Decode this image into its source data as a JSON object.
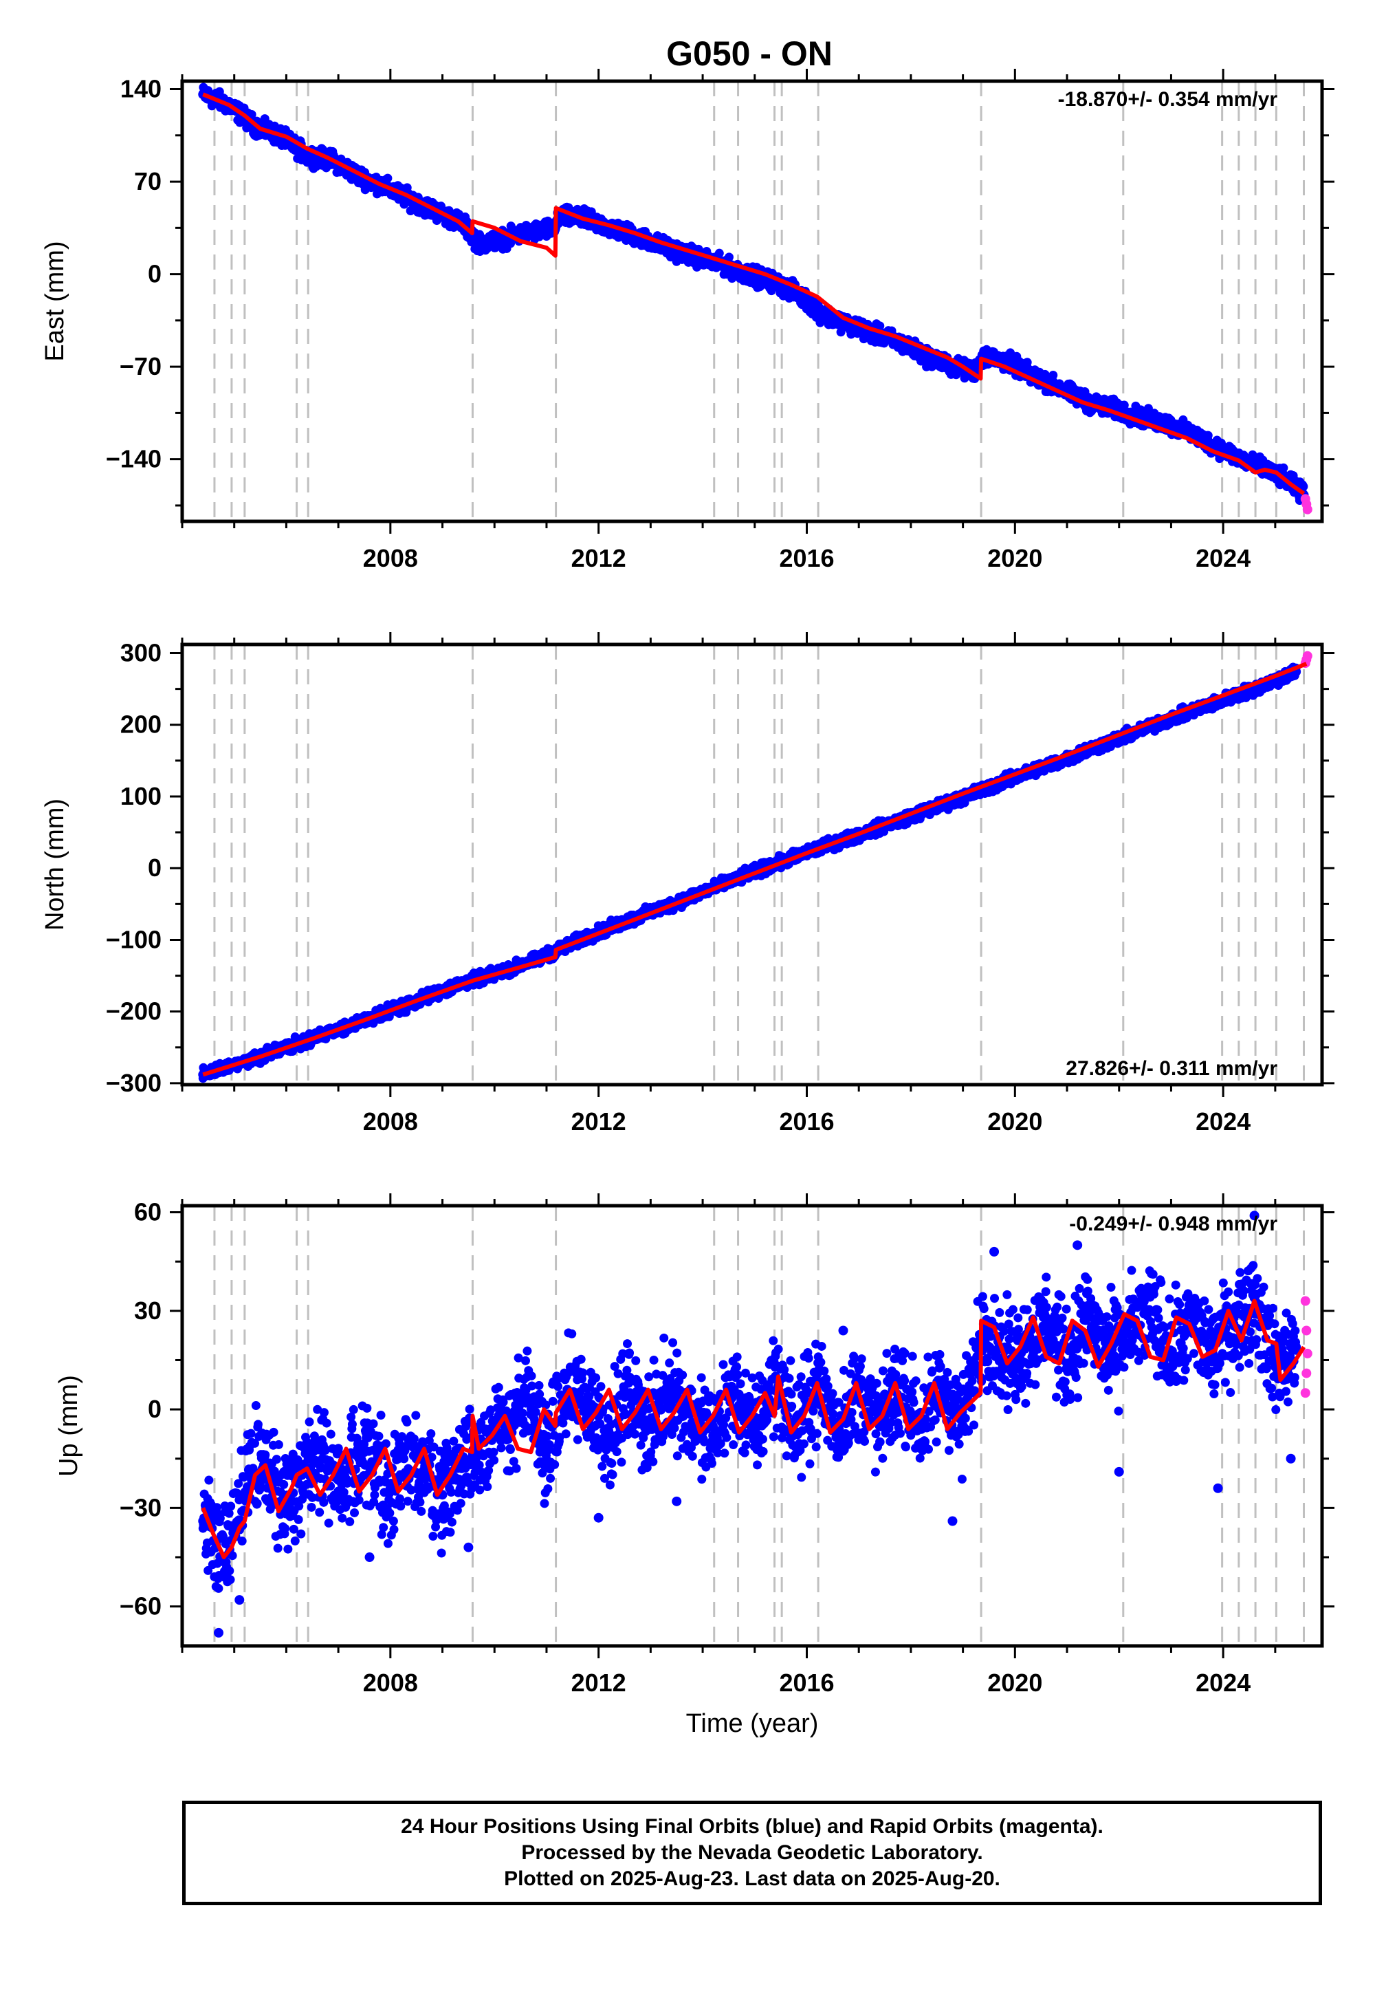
{
  "colors": {
    "final_orbits": "#0000ff",
    "rapid_orbits": "#ff33dd",
    "model": "#ff0000",
    "event_lines": "#c0c0c0",
    "frame": "#000000"
  },
  "footer": {
    "line1": "24 Hour Positions Using Final Orbits (blue) and Rapid Orbits (magenta).",
    "line2": "Processed by the Nevada Geodetic Laboratory.",
    "line3": "Plotted on 2025-Aug-23. Last data on 2025-Aug-20."
  },
  "chart_data": [
    {
      "type": "scatter",
      "title": "G050 - ON",
      "ylabel": "East (mm)",
      "xlabel": "",
      "xlim": [
        2004.0,
        2025.9
      ],
      "ylim": [
        -187,
        146
      ],
      "xticks": [
        2008,
        2012,
        2016,
        2020,
        2024
      ],
      "yticks": [
        -140,
        -70,
        0,
        70,
        140
      ],
      "grid": false,
      "rate_label": "-18.870+/- 0.354 mm/yr",
      "rate_position": "top-right",
      "events": [
        2004.62,
        2004.95,
        2005.2,
        2006.2,
        2006.42,
        2009.58,
        2011.18,
        2014.22,
        2014.68,
        2015.38,
        2015.52,
        2016.22,
        2019.35,
        2022.08,
        2023.98,
        2024.3,
        2024.62,
        2025.02,
        2025.55
      ],
      "series": [
        {
          "style": "points",
          "color": "final_orbits",
          "x": [
            2004.4,
            2004.9,
            2005.4,
            2005.9,
            2006.4,
            2006.9,
            2007.4,
            2007.9,
            2008.4,
            2008.9,
            2009.4,
            2009.7,
            2010.2,
            2010.7,
            2011.1,
            2011.3,
            2011.8,
            2012.3,
            2012.8,
            2013.3,
            2013.8,
            2014.3,
            2014.8,
            2015.3,
            2015.8,
            2016.3,
            2016.8,
            2017.3,
            2017.8,
            2018.3,
            2018.8,
            2019.2,
            2019.4,
            2019.9,
            2020.4,
            2020.9,
            2021.4,
            2021.9,
            2022.4,
            2022.9,
            2023.4,
            2023.9,
            2024.4,
            2024.9,
            2025.3,
            2025.55
          ],
          "y": [
            136,
            128,
            112,
            104,
            90,
            86,
            74,
            66,
            56,
            47,
            38,
            23,
            27,
            32,
            34,
            44,
            41,
            34,
            28,
            20,
            14,
            8,
            1,
            -5,
            -14,
            -30,
            -38,
            -45,
            -52,
            -62,
            -70,
            -74,
            -62,
            -67,
            -78,
            -87,
            -97,
            -102,
            -108,
            -113,
            -121,
            -131,
            -141,
            -149,
            -158,
            -167
          ]
        },
        {
          "style": "points",
          "color": "rapid_orbits",
          "x": [
            2025.58,
            2025.6,
            2025.62
          ],
          "y": [
            -170,
            -174,
            -178
          ]
        },
        {
          "style": "line",
          "color": "model",
          "x": [
            2004.4,
            2004.9,
            2005.2,
            2005.5,
            2006.0,
            2006.4,
            2006.8,
            2007.3,
            2007.8,
            2008.3,
            2008.8,
            2009.3,
            2009.57,
            2009.58,
            2010.0,
            2010.5,
            2011.0,
            2011.17,
            2011.18,
            2011.7,
            2012.2,
            2012.7,
            2013.2,
            2013.7,
            2014.2,
            2014.7,
            2015.2,
            2015.7,
            2016.2,
            2016.7,
            2017.2,
            2017.7,
            2018.2,
            2018.7,
            2019.0,
            2019.34,
            2019.35,
            2019.8,
            2020.3,
            2020.8,
            2021.3,
            2021.8,
            2022.3,
            2022.8,
            2023.3,
            2023.8,
            2024.3,
            2024.62,
            2024.8,
            2025.02,
            2025.3,
            2025.55
          ],
          "y": [
            136,
            128,
            120,
            110,
            104,
            95,
            88,
            78,
            68,
            60,
            50,
            40,
            31,
            40,
            35,
            25,
            20,
            14,
            50,
            42,
            37,
            31,
            24,
            18,
            12,
            6,
            0,
            -8,
            -17,
            -33,
            -41,
            -47,
            -55,
            -63,
            -70,
            -79,
            -64,
            -70,
            -79,
            -88,
            -97,
            -103,
            -110,
            -117,
            -124,
            -134,
            -141,
            -150,
            -148,
            -150,
            -159,
            -166
          ]
        }
      ]
    },
    {
      "type": "scatter",
      "title": "",
      "ylabel": "North (mm)",
      "xlabel": "",
      "xlim": [
        2004.0,
        2025.9
      ],
      "ylim": [
        -302,
        312
      ],
      "xticks": [
        2008,
        2012,
        2016,
        2020,
        2024
      ],
      "yticks": [
        -300,
        -200,
        -100,
        0,
        100,
        200,
        300
      ],
      "grid": false,
      "rate_label": "27.826+/- 0.311 mm/yr",
      "rate_position": "bottom-right",
      "events": [
        2004.62,
        2004.95,
        2005.2,
        2006.2,
        2006.42,
        2009.58,
        2011.18,
        2014.22,
        2014.68,
        2015.38,
        2015.52,
        2016.22,
        2019.35,
        2022.08,
        2023.98,
        2024.3,
        2024.62,
        2025.02,
        2025.55
      ],
      "series": [
        {
          "style": "points",
          "color": "final_orbits",
          "x": [
            2004.4,
            2004.9,
            2005.4,
            2005.9,
            2006.4,
            2006.9,
            2007.4,
            2007.9,
            2008.4,
            2008.9,
            2009.4,
            2009.9,
            2010.4,
            2010.9,
            2011.4,
            2011.9,
            2012.4,
            2012.9,
            2013.4,
            2013.9,
            2014.4,
            2014.9,
            2015.4,
            2015.9,
            2016.4,
            2016.9,
            2017.4,
            2017.9,
            2018.4,
            2018.9,
            2019.4,
            2019.9,
            2020.4,
            2020.9,
            2021.4,
            2021.9,
            2022.4,
            2022.9,
            2023.4,
            2023.9,
            2024.4,
            2024.9,
            2025.4
          ],
          "y": [
            -288,
            -276,
            -265,
            -252,
            -240,
            -228,
            -215,
            -201,
            -188,
            -174,
            -160,
            -150,
            -138,
            -125,
            -108,
            -92,
            -78,
            -64,
            -51,
            -36,
            -22,
            -8,
            6,
            19,
            32,
            44,
            57,
            70,
            83,
            96,
            110,
            124,
            138,
            150,
            165,
            178,
            192,
            206,
            219,
            232,
            245,
            259,
            274
          ]
        },
        {
          "style": "points",
          "color": "rapid_orbits",
          "x": [
            2025.58,
            2025.6,
            2025.62
          ],
          "y": [
            286,
            291,
            296
          ]
        },
        {
          "style": "line",
          "color": "model",
          "x": [
            2004.4,
            2005.5,
            2006.5,
            2007.5,
            2008.5,
            2009.58,
            2010.5,
            2011.17,
            2011.18,
            2012.0,
            2013.0,
            2014.0,
            2015.0,
            2016.0,
            2017.0,
            2018.0,
            2019.0,
            2020.0,
            2021.0,
            2022.0,
            2023.0,
            2024.0,
            2025.0,
            2025.6
          ],
          "y": [
            -288,
            -263,
            -238,
            -212,
            -185,
            -157,
            -138,
            -124,
            -114,
            -91,
            -63,
            -35,
            -7,
            21,
            48,
            76,
            104,
            131,
            158,
            186,
            214,
            241,
            268,
            285
          ]
        }
      ]
    },
    {
      "type": "scatter",
      "title": "",
      "ylabel": "Up (mm)",
      "xlabel": "Time (year)",
      "xlim": [
        2004.0,
        2025.9
      ],
      "ylim": [
        -72,
        62
      ],
      "xticks": [
        2008,
        2012,
        2016,
        2020,
        2024
      ],
      "yticks": [
        -60,
        -30,
        0,
        30,
        60
      ],
      "grid": false,
      "rate_label": "-0.249+/- 0.948 mm/yr",
      "rate_position": "top-right",
      "events": [
        2004.62,
        2004.95,
        2005.2,
        2006.2,
        2006.42,
        2009.58,
        2011.18,
        2014.22,
        2014.68,
        2015.38,
        2015.52,
        2016.22,
        2019.35,
        2022.08,
        2023.98,
        2024.3,
        2024.62,
        2025.02,
        2025.55
      ],
      "series": [
        {
          "style": "points",
          "color": "final_orbits",
          "x": [
            2004.4,
            2004.6,
            2004.8,
            2005.0,
            2005.3,
            2005.6,
            2006.0,
            2006.3,
            2006.7,
            2007.0,
            2007.5,
            2008.0,
            2008.5,
            2009.0,
            2009.4,
            2009.8,
            2010.2,
            2010.6,
            2011.0,
            2011.4,
            2011.8,
            2012.2,
            2012.6,
            2013.0,
            2013.4,
            2013.8,
            2014.2,
            2014.6,
            2015.0,
            2015.4,
            2015.8,
            2016.2,
            2016.6,
            2017.0,
            2017.4,
            2017.8,
            2018.2,
            2018.6,
            2019.0,
            2019.4,
            2019.8,
            2020.2,
            2020.6,
            2021.0,
            2021.4,
            2021.8,
            2022.2,
            2022.6,
            2023.0,
            2023.4,
            2023.8,
            2024.2,
            2024.6,
            2025.0,
            2025.4,
            2004.7,
            2005.1,
            2007.6,
            2009.5,
            2012.0,
            2013.5,
            2016.7,
            2018.8,
            2019.6,
            2021.2,
            2022.0,
            2023.9,
            2024.6,
            2025.3
          ],
          "y": [
            -34,
            -40,
            -45,
            -38,
            -20,
            -17,
            -29,
            -20,
            -15,
            -25,
            -13,
            -24,
            -15,
            -26,
            -16,
            -10,
            -5,
            2,
            -12,
            6,
            2,
            -8,
            5,
            -6,
            7,
            -4,
            -8,
            6,
            -8,
            10,
            -7,
            8,
            -6,
            6,
            -5,
            8,
            -6,
            7,
            -5,
            26,
            15,
            19,
            27,
            14,
            28,
            16,
            23,
            30,
            16,
            26,
            17,
            26,
            34,
            13,
            19,
            -68,
            -58,
            -45,
            -42,
            -33,
            -28,
            24,
            -34,
            48,
            50,
            -19,
            -24,
            59,
            -15
          ]
        },
        {
          "style": "points",
          "color": "rapid_orbits",
          "x": [
            2025.58,
            2025.6,
            2025.62,
            2025.6,
            2025.58
          ],
          "y": [
            33,
            24,
            17,
            11,
            5
          ]
        },
        {
          "style": "line",
          "color": "model",
          "x": [
            2004.4,
            2004.6,
            2004.8,
            2004.95,
            2005.1,
            2005.2,
            2005.4,
            2005.6,
            2005.85,
            2006.1,
            2006.2,
            2006.4,
            2006.65,
            2006.9,
            2007.15,
            2007.4,
            2007.65,
            2007.9,
            2008.15,
            2008.4,
            2008.65,
            2008.9,
            2009.15,
            2009.4,
            2009.57,
            2009.58,
            2009.7,
            2009.95,
            2010.2,
            2010.45,
            2010.7,
            2010.95,
            2011.17,
            2011.18,
            2011.45,
            2011.7,
            2011.95,
            2012.2,
            2012.45,
            2012.7,
            2012.95,
            2013.2,
            2013.45,
            2013.7,
            2013.95,
            2014.2,
            2014.45,
            2014.7,
            2014.95,
            2015.2,
            2015.38,
            2015.45,
            2015.7,
            2015.95,
            2016.2,
            2016.45,
            2016.7,
            2016.95,
            2017.2,
            2017.45,
            2017.7,
            2017.95,
            2018.2,
            2018.45,
            2018.7,
            2018.95,
            2019.34,
            2019.35,
            2019.6,
            2019.85,
            2020.1,
            2020.35,
            2020.6,
            2020.85,
            2021.1,
            2021.35,
            2021.6,
            2021.85,
            2022.1,
            2022.35,
            2022.6,
            2022.85,
            2023.1,
            2023.35,
            2023.6,
            2023.85,
            2024.1,
            2024.35,
            2024.6,
            2024.85,
            2025.02,
            2025.1,
            2025.35,
            2025.55
          ],
          "y": [
            -30,
            -38,
            -45,
            -42,
            -36,
            -34,
            -20,
            -17,
            -31,
            -24,
            -20,
            -18,
            -26,
            -20,
            -12,
            -25,
            -20,
            -12,
            -25,
            -20,
            -12,
            -26,
            -20,
            -12,
            -13,
            -2,
            -12,
            -8,
            -2,
            -12,
            -13,
            0,
            -5,
            -1,
            6,
            -6,
            -1,
            6,
            -6,
            -1,
            6,
            -6,
            -1,
            6,
            -7,
            -2,
            6,
            -7,
            -2,
            5,
            -2,
            10,
            -7,
            -2,
            8,
            -7,
            -3,
            8,
            -6,
            -2,
            8,
            -6,
            -2,
            8,
            -6,
            -1,
            5,
            27,
            25,
            14,
            19,
            28,
            16,
            14,
            27,
            24,
            13,
            20,
            29,
            27,
            16,
            15,
            28,
            26,
            16,
            18,
            30,
            21,
            33,
            21,
            20,
            9,
            14,
            19
          ]
        }
      ]
    }
  ]
}
